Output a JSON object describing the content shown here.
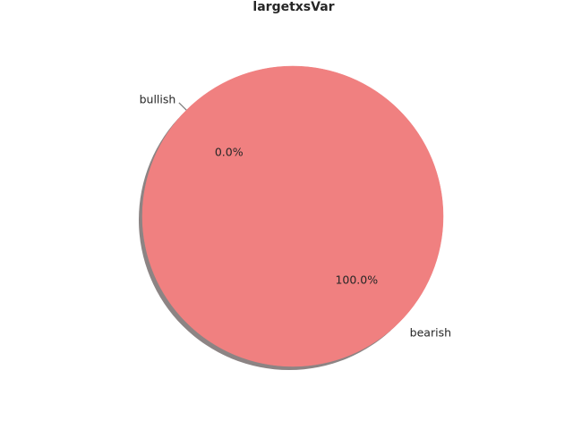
{
  "chart_data": {
    "type": "pie",
    "title": "largetxsVar",
    "categories": [
      "bullish",
      "bearish"
    ],
    "values": [
      0.0,
      100.0
    ],
    "percent_labels": [
      "0.0%",
      "100.0%"
    ],
    "colors": [
      "#87ceeb",
      "#f08080"
    ],
    "shadow": true,
    "shadow_color": "#8c8484",
    "edge_color": "#f08080",
    "legend": "none"
  }
}
